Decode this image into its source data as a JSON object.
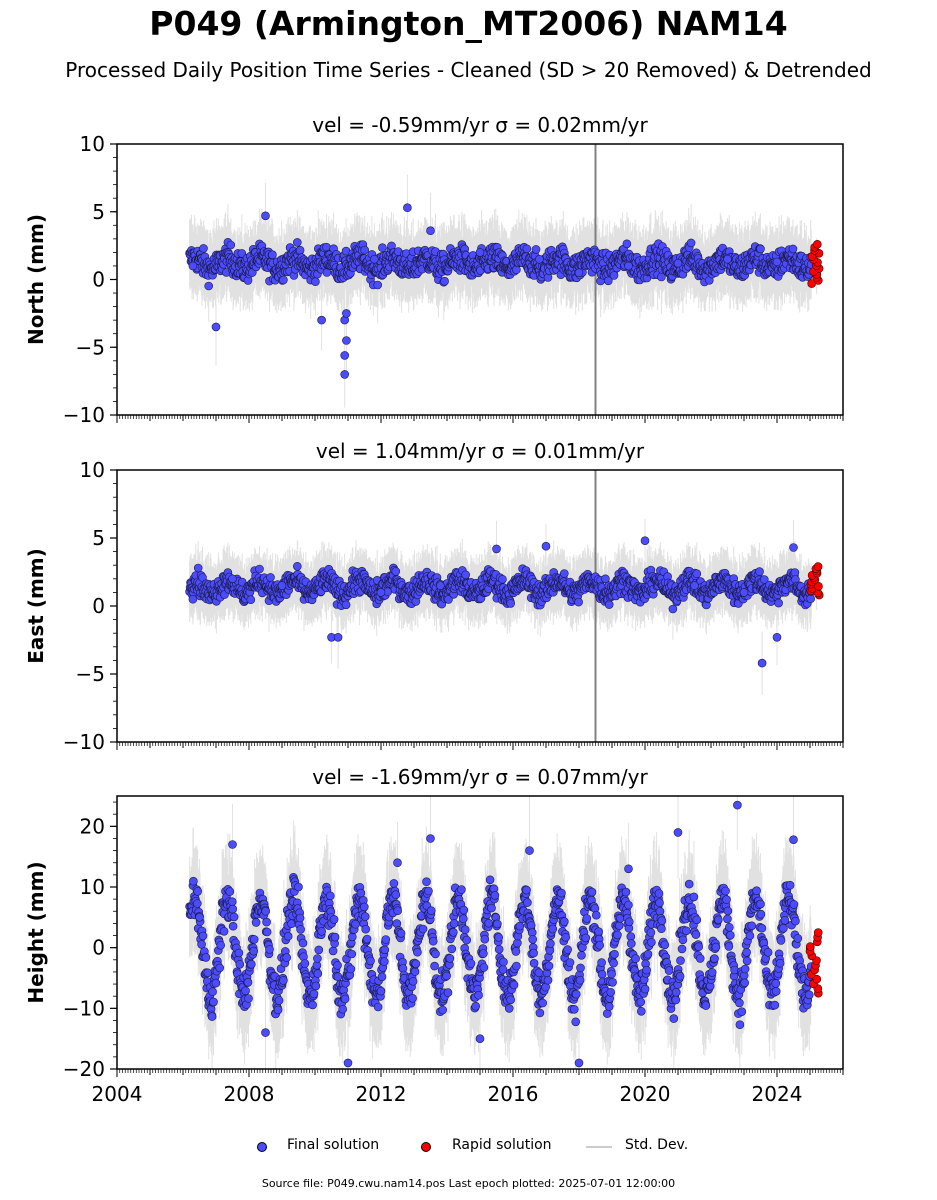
{
  "title": "P049 (Armington_MT2006) NAM14",
  "subtitle": "Processed Daily Position Time Series - Cleaned (SD > 20 Removed) & Detrended",
  "legend": {
    "final_label": "Final solution",
    "rapid_label": "Rapid solution",
    "std_label": "Std. Dev."
  },
  "footer": "Source file: P049.cwu.nam14.pos  Last epoch plotted: 2025-07-01 12:00:00",
  "colors": {
    "final": "#4b4bff",
    "rapid": "#ff0000",
    "std": "#aaaaaa",
    "event_line": "#808080"
  },
  "chart_data": [
    {
      "type": "scatter",
      "title": "vel = -0.59mm/yr   σ = 0.02mm/yr",
      "ylabel": "North (mm)",
      "ylim": [
        -10,
        10
      ],
      "xlim": [
        2004.0,
        2026.0
      ],
      "yticks": [
        -10,
        -5,
        0,
        5,
        10
      ],
      "xticks": [
        2004,
        2008,
        2012,
        2016,
        2020,
        2024
      ],
      "x_start": 2006.2,
      "x_end": 2025.3,
      "event_line_x": 2018.5,
      "series": [
        {
          "name": "Final solution",
          "mean": 1.2,
          "spread": 1.2,
          "seasonal_amp": 0.4,
          "sample_x": [
            2006.3,
            2007.0,
            2008.5,
            2010.2,
            2011.8,
            2012.8,
            2013.5,
            2015.0,
            2016.8,
            2018.0,
            2019.5,
            2021.0,
            2022.5,
            2024.0,
            2025.2
          ],
          "sample_y": [
            1.0,
            -3.5,
            4.7,
            -3.0,
            1.5,
            5.3,
            3.6,
            2.0,
            1.5,
            0.5,
            1.0,
            1.2,
            1.5,
            1.3,
            1.0
          ]
        },
        {
          "name": "Rapid solution",
          "x_range": [
            2025.0,
            2025.3
          ],
          "y_range": [
            -0.3,
            2.6
          ]
        }
      ],
      "outliers": [
        {
          "x": 2010.9,
          "y": -7.0
        },
        {
          "x": 2010.9,
          "y": -5.6
        },
        {
          "x": 2010.95,
          "y": -4.5
        },
        {
          "x": 2010.9,
          "y": -3.0
        },
        {
          "x": 2010.95,
          "y": -2.5
        }
      ]
    },
    {
      "type": "scatter",
      "title": "vel = 1.04mm/yr   σ = 0.01mm/yr",
      "ylabel": "East (mm)",
      "ylim": [
        -10,
        10
      ],
      "xlim": [
        2004.0,
        2026.0
      ],
      "yticks": [
        -10,
        -5,
        0,
        5,
        10
      ],
      "xticks": [
        2004,
        2008,
        2012,
        2016,
        2020,
        2024
      ],
      "x_start": 2006.2,
      "x_end": 2025.3,
      "event_line_x": 2018.5,
      "series": [
        {
          "name": "Final solution",
          "mean": 1.4,
          "spread": 1.0,
          "seasonal_amp": 0.5,
          "sample_x": [
            2006.3,
            2007.5,
            2009.0,
            2010.5,
            2012.0,
            2013.8,
            2015.5,
            2017.0,
            2018.8,
            2020.0,
            2021.5,
            2023.0,
            2024.5,
            2025.2
          ],
          "sample_y": [
            0.5,
            2.0,
            1.5,
            -2.3,
            1.0,
            1.5,
            4.2,
            4.4,
            2.0,
            4.8,
            1.5,
            1.0,
            4.3,
            1.5
          ]
        },
        {
          "name": "Rapid solution",
          "x_range": [
            2025.0,
            2025.3
          ],
          "y_range": [
            0.8,
            2.9
          ]
        }
      ],
      "outliers": [
        {
          "x": 2023.55,
          "y": -4.2
        },
        {
          "x": 2024.0,
          "y": -2.3
        },
        {
          "x": 2010.7,
          "y": -2.3
        }
      ]
    },
    {
      "type": "scatter",
      "title": "vel = -1.69mm/yr   σ = 0.07mm/yr",
      "ylabel": "Height (mm)",
      "ylim": [
        -20,
        25
      ],
      "xlim": [
        2004.0,
        2026.0
      ],
      "yticks": [
        -20,
        -10,
        0,
        10,
        20
      ],
      "xticks": [
        2004,
        2008,
        2012,
        2016,
        2020,
        2024
      ],
      "x_start": 2006.2,
      "x_end": 2025.3,
      "series": [
        {
          "name": "Final solution",
          "mean": 0.0,
          "spread": 4.0,
          "seasonal_amp": 8.0,
          "sample_x": [
            2006.5,
            2007.5,
            2008.5,
            2009.5,
            2011.0,
            2012.5,
            2013.5,
            2015.0,
            2016.5,
            2018.0,
            2019.5,
            2021.0,
            2022.8,
            2024.5
          ],
          "sample_y": [
            5.0,
            17.0,
            -14.0,
            10.0,
            -19.0,
            14.0,
            18.0,
            -15.0,
            16.0,
            -19.0,
            13.0,
            19.0,
            23.5,
            17.8
          ]
        },
        {
          "name": "Rapid solution",
          "x_range": [
            2025.0,
            2025.3
          ],
          "y_range": [
            -7.5,
            2.5
          ]
        }
      ],
      "outliers": []
    }
  ]
}
